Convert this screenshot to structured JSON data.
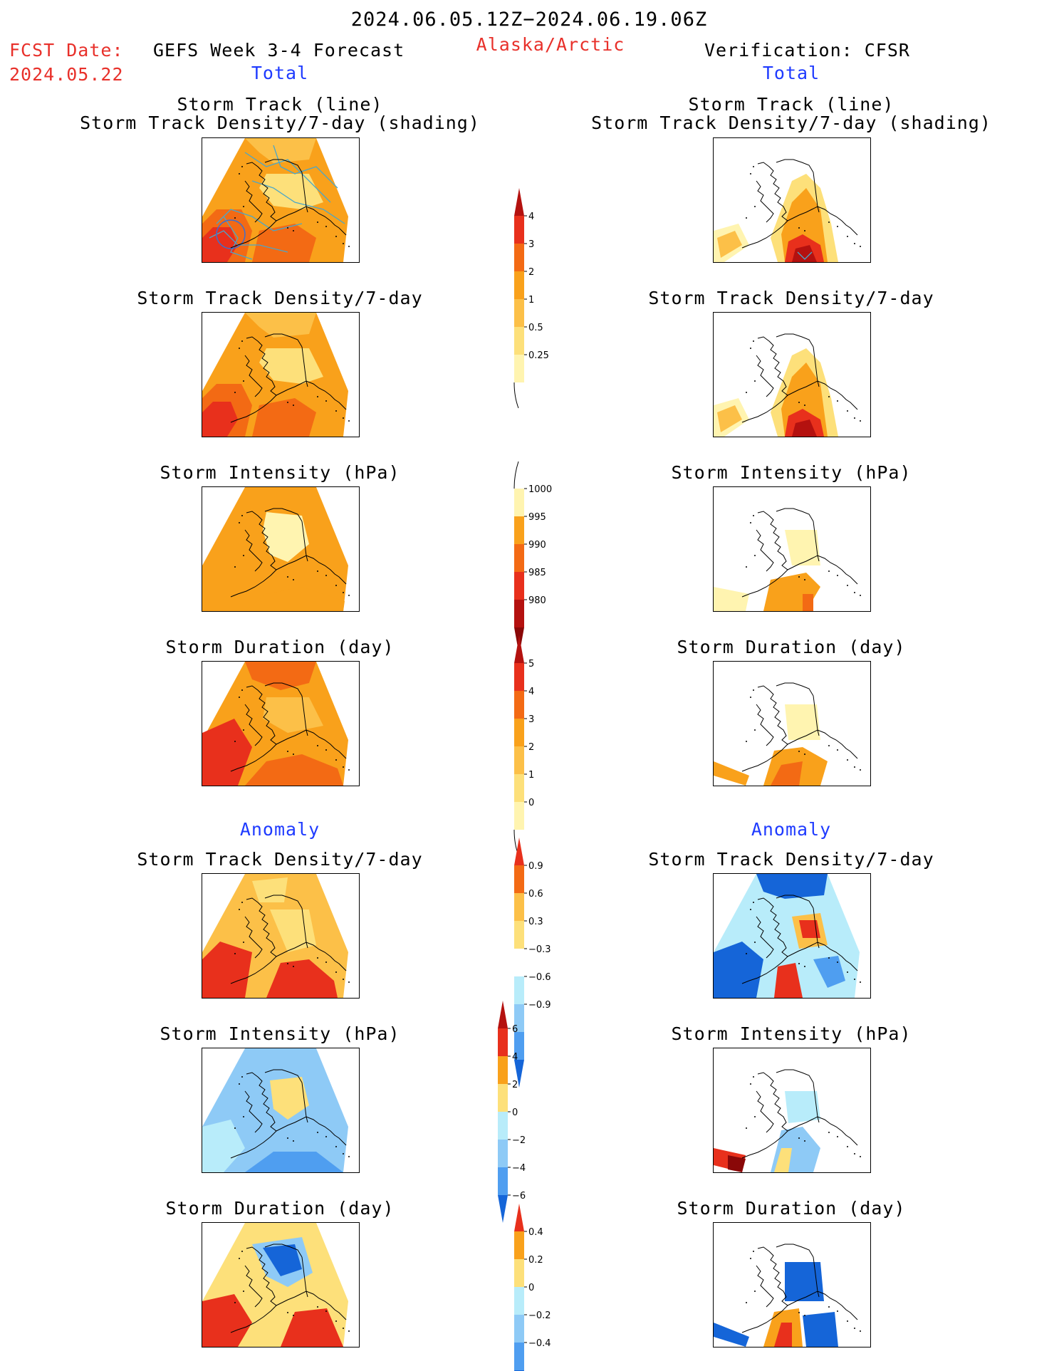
{
  "header": {
    "date_range": "2024.06.05.12Z−2024.06.19.06Z",
    "fcst_label": "FCST Date:",
    "fcst_date": "2024.05.22",
    "model_title": "GEFS Week 3-4 Forecast",
    "region": "Alaska/Arctic",
    "verification": "Verification: CFSR",
    "left_section": "Total",
    "right_section": "Total"
  },
  "anomaly_labels": {
    "left": "Anomaly",
    "right": "Anomaly"
  },
  "panel_titles": {
    "track_line": "Storm Track (line)",
    "track_shading": "Storm Track Density/7-day (shading)",
    "density": "Storm Track Density/7-day",
    "intensity": "Storm Intensity (hPa)",
    "duration": "Storm Duration (day)"
  },
  "colors": {
    "c_y1": "#fff4b0",
    "c_y2": "#fde07a",
    "c_o1": "#fcc048",
    "c_o2": "#f9a11b",
    "c_o3": "#f36a14",
    "c_r1": "#e8301c",
    "c_r2": "#b4110f",
    "c_r3": "#8a0808",
    "c_b1": "#b8ecfa",
    "c_b2": "#8ecaf6",
    "c_b3": "#4f9ef0",
    "c_b4": "#1565d8",
    "track_lines": "#4aa6c9"
  },
  "colorbars": [
    {
      "id": "density_total",
      "labels": [
        "4",
        "3",
        "2",
        "1",
        "0.5",
        "0.25"
      ]
    },
    {
      "id": "intensity_total",
      "labels": [
        "1000",
        "995",
        "990",
        "985",
        "980"
      ]
    },
    {
      "id": "duration_total",
      "labels": [
        "5",
        "4",
        "3",
        "2",
        "1",
        "0"
      ]
    },
    {
      "id": "density_anom",
      "labels": [
        "0.9",
        "0.6",
        "0.3",
        "−0.3",
        "−0.6",
        "−0.9"
      ]
    },
    {
      "id": "intensity_anom",
      "labels": [
        "6",
        "4",
        "2",
        "0",
        "−2",
        "−4",
        "−6"
      ]
    },
    {
      "id": "duration_anom",
      "labels": [
        "0.4",
        "0.2",
        "0",
        "−0.2",
        "−0.4"
      ]
    }
  ],
  "chart_data": [
    {
      "type": "heatmap",
      "panel": "GEFS forecast total storm track (line) over storm track density/7-day (shading)",
      "units": "storms per 7 days",
      "levels": [
        0.25,
        0.5,
        1,
        2,
        3,
        4
      ],
      "dominant_range": [
        1,
        2
      ],
      "max_range": [
        3,
        4
      ]
    },
    {
      "type": "heatmap",
      "panel": "CFSR verification total storm track (line) over storm track density/7-day (shading)",
      "units": "storms per 7 days",
      "levels": [
        0.25,
        0.5,
        1,
        2,
        3,
        4
      ],
      "max_range": [
        4,
        5
      ]
    },
    {
      "type": "heatmap",
      "panel": "GEFS total storm track density/7-day",
      "levels": [
        0.25,
        0.5,
        1,
        2,
        3,
        4
      ]
    },
    {
      "type": "heatmap",
      "panel": "CFSR total storm track density/7-day",
      "levels": [
        0.25,
        0.5,
        1,
        2,
        3,
        4
      ]
    },
    {
      "type": "heatmap",
      "panel": "GEFS total storm intensity",
      "units": "hPa",
      "levels": [
        980,
        985,
        990,
        995,
        1000
      ],
      "dominant_range": [
        990,
        995
      ]
    },
    {
      "type": "heatmap",
      "panel": "CFSR total storm intensity",
      "units": "hPa",
      "levels": [
        980,
        985,
        990,
        995,
        1000
      ]
    },
    {
      "type": "heatmap",
      "panel": "GEFS total storm duration",
      "units": "day",
      "levels": [
        0,
        1,
        2,
        3,
        4,
        5
      ],
      "dominant_range": [
        2,
        3
      ]
    },
    {
      "type": "heatmap",
      "panel": "CFSR total storm duration",
      "units": "day",
      "levels": [
        0,
        1,
        2,
        3,
        4,
        5
      ]
    },
    {
      "type": "heatmap",
      "panel": "GEFS anomaly storm track density/7-day",
      "levels": [
        -0.9,
        -0.6,
        -0.3,
        0.3,
        0.6,
        0.9
      ]
    },
    {
      "type": "heatmap",
      "panel": "CFSR anomaly storm track density/7-day",
      "levels": [
        -0.9,
        -0.6,
        -0.3,
        0.3,
        0.6,
        0.9
      ]
    },
    {
      "type": "heatmap",
      "panel": "GEFS anomaly storm intensity",
      "units": "hPa",
      "levels": [
        -6,
        -4,
        -2,
        0,
        2,
        4,
        6
      ]
    },
    {
      "type": "heatmap",
      "panel": "CFSR anomaly storm intensity",
      "units": "hPa",
      "levels": [
        -6,
        -4,
        -2,
        0,
        2,
        4,
        6
      ]
    },
    {
      "type": "heatmap",
      "panel": "GEFS anomaly storm duration",
      "units": "day",
      "levels": [
        -0.4,
        -0.2,
        0,
        0.2,
        0.4
      ]
    },
    {
      "type": "heatmap",
      "panel": "CFSR anomaly storm duration",
      "units": "day",
      "levels": [
        -0.4,
        -0.2,
        0,
        0.2,
        0.4
      ]
    }
  ]
}
